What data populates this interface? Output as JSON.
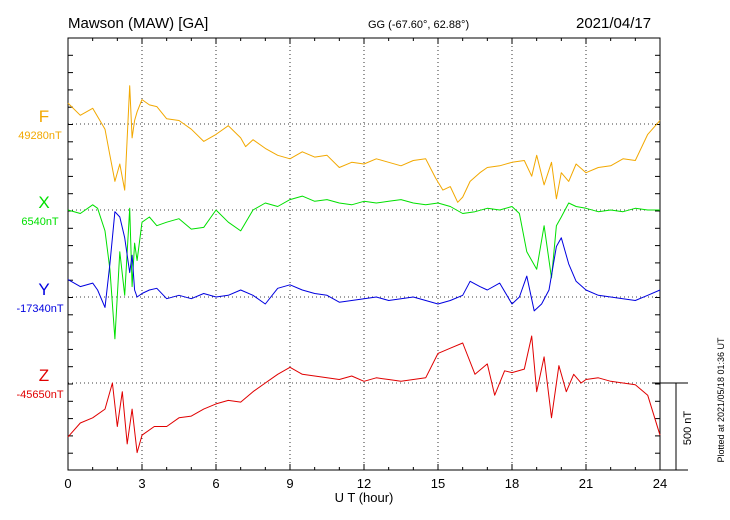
{
  "header": {
    "station": "Mawson (MAW)  [GA]",
    "coords": "GG (-67.60°,  62.88°)",
    "date": "2021/04/17"
  },
  "footer": {
    "plotted_note": "Plotted at 2021/05/18 01:36 UT",
    "scale_label": "500 nT"
  },
  "chart_data": {
    "type": "line",
    "xlabel": "U T (hour)",
    "xlim": [
      0,
      24
    ],
    "xticks": [
      "0",
      "3",
      "6",
      "9",
      "12",
      "15",
      "18",
      "21",
      "24"
    ],
    "scale_nT": 500,
    "series": [
      {
        "name": "F",
        "baseline_label": "49280nT",
        "baseline_nT": 49280,
        "color": "#f2a800",
        "x": [
          0,
          0.5,
          1.0,
          1.5,
          1.7,
          1.9,
          2.1,
          2.3,
          2.5,
          2.6,
          2.7,
          2.8,
          3.0,
          3.3,
          3.6,
          4.0,
          4.5,
          5.0,
          5.5,
          6.0,
          6.5,
          7.0,
          7.2,
          7.5,
          8.0,
          8.5,
          9.0,
          9.5,
          10.0,
          10.5,
          11.0,
          11.5,
          12.0,
          12.5,
          13.0,
          13.5,
          14.0,
          14.5,
          14.9,
          15.2,
          15.5,
          15.8,
          16.0,
          16.3,
          16.7,
          17.0,
          17.5,
          18.0,
          18.5,
          18.8,
          19.0,
          19.3,
          19.6,
          19.8,
          20.0,
          20.3,
          20.6,
          21.0,
          21.5,
          22.0,
          22.5,
          23.0,
          23.5,
          24.0
        ],
        "values": [
          49400,
          49330,
          49370,
          49250,
          49100,
          48950,
          49050,
          48900,
          49500,
          49200,
          49300,
          49350,
          49420,
          49390,
          49380,
          49310,
          49300,
          49250,
          49180,
          49220,
          49270,
          49200,
          49150,
          49190,
          49140,
          49100,
          49080,
          49120,
          49090,
          49100,
          49030,
          49060,
          49050,
          49080,
          49060,
          49040,
          49070,
          49080,
          48970,
          48900,
          48920,
          48830,
          48860,
          48950,
          49000,
          49030,
          49040,
          49060,
          49070,
          48980,
          49100,
          48930,
          49060,
          48850,
          49000,
          48950,
          49050,
          49000,
          49030,
          49040,
          49080,
          49070,
          49220,
          49300
        ]
      },
      {
        "name": "X",
        "baseline_label": "6540nT",
        "baseline_nT": 6540,
        "color": "#00e000",
        "x": [
          0,
          0.5,
          1.0,
          1.2,
          1.5,
          1.7,
          1.9,
          2.1,
          2.3,
          2.5,
          2.6,
          2.7,
          2.8,
          3.0,
          3.3,
          3.6,
          4.0,
          4.5,
          5.0,
          5.5,
          6.0,
          6.5,
          7.0,
          7.5,
          8.0,
          8.5,
          9.0,
          9.5,
          10.0,
          10.5,
          11.0,
          11.5,
          12.0,
          12.5,
          13.0,
          13.5,
          14.0,
          14.5,
          15.0,
          15.5,
          16.0,
          16.5,
          17.0,
          17.5,
          18.0,
          18.3,
          18.6,
          19.0,
          19.3,
          19.6,
          19.8,
          20.0,
          20.3,
          20.6,
          21.0,
          21.5,
          22.0,
          22.5,
          23.0,
          23.5,
          24.0
        ],
        "values": [
          6540,
          6520,
          6570,
          6550,
          6420,
          6200,
          5800,
          6300,
          6050,
          6550,
          6100,
          6350,
          6250,
          6470,
          6500,
          6450,
          6470,
          6490,
          6430,
          6440,
          6540,
          6470,
          6420,
          6540,
          6580,
          6560,
          6600,
          6620,
          6590,
          6600,
          6580,
          6570,
          6590,
          6580,
          6590,
          6600,
          6580,
          6570,
          6580,
          6560,
          6520,
          6530,
          6550,
          6540,
          6560,
          6520,
          6300,
          6200,
          6450,
          6150,
          6450,
          6500,
          6580,
          6560,
          6550,
          6530,
          6540,
          6530,
          6550,
          6540,
          6540
        ]
      },
      {
        "name": "Y",
        "baseline_label": "-17340nT",
        "baseline_nT": -17340,
        "color": "#0000e0",
        "x": [
          0,
          0.5,
          1.0,
          1.2,
          1.5,
          1.7,
          1.9,
          2.1,
          2.3,
          2.5,
          2.6,
          2.7,
          2.8,
          3.0,
          3.3,
          3.6,
          4.0,
          4.5,
          5.0,
          5.5,
          6.0,
          6.5,
          7.0,
          7.5,
          8.0,
          8.5,
          9.0,
          9.5,
          10.0,
          10.5,
          11.0,
          11.5,
          12.0,
          12.5,
          13.0,
          13.5,
          14.0,
          14.5,
          15.0,
          15.5,
          16.0,
          16.3,
          16.7,
          17.0,
          17.5,
          18.0,
          18.3,
          18.6,
          18.9,
          19.2,
          19.5,
          19.8,
          20.0,
          20.3,
          20.6,
          21.0,
          21.5,
          22.0,
          22.5,
          23.0,
          23.5,
          24.0
        ],
        "values": [
          -17240,
          -17280,
          -17260,
          -17300,
          -17400,
          -17150,
          -16850,
          -16880,
          -17000,
          -17200,
          -17100,
          -17300,
          -17340,
          -17320,
          -17300,
          -17290,
          -17350,
          -17330,
          -17350,
          -17320,
          -17340,
          -17330,
          -17300,
          -17330,
          -17380,
          -17290,
          -17270,
          -17300,
          -17320,
          -17330,
          -17370,
          -17360,
          -17350,
          -17340,
          -17360,
          -17350,
          -17340,
          -17360,
          -17380,
          -17360,
          -17330,
          -17250,
          -17280,
          -17300,
          -17260,
          -17380,
          -17340,
          -17220,
          -17420,
          -17380,
          -17300,
          -17050,
          -17000,
          -17150,
          -17250,
          -17300,
          -17330,
          -17340,
          -17350,
          -17360,
          -17330,
          -17300
        ]
      },
      {
        "name": "Z",
        "baseline_label": "-45650nT",
        "baseline_nT": -45650,
        "color": "#e00000",
        "x": [
          0,
          0.5,
          1.0,
          1.5,
          1.8,
          2.0,
          2.2,
          2.4,
          2.6,
          2.8,
          3.0,
          3.5,
          4.0,
          4.5,
          5.0,
          5.5,
          6.0,
          6.5,
          7.0,
          7.5,
          8.0,
          8.5,
          9.0,
          9.5,
          10.0,
          10.5,
          11.0,
          11.5,
          12.0,
          12.5,
          13.0,
          13.5,
          14.0,
          14.5,
          15.0,
          15.5,
          16.0,
          16.5,
          17.0,
          17.3,
          17.7,
          18.0,
          18.5,
          18.8,
          19.0,
          19.3,
          19.6,
          19.9,
          20.2,
          20.5,
          20.8,
          21.0,
          21.5,
          22.0,
          22.5,
          23.0,
          23.5,
          24.0
        ],
        "values": [
          -45960,
          -45880,
          -45850,
          -45800,
          -45650,
          -45900,
          -45700,
          -46000,
          -45800,
          -46050,
          -45950,
          -45900,
          -45900,
          -45850,
          -45840,
          -45800,
          -45770,
          -45750,
          -45760,
          -45700,
          -45650,
          -45600,
          -45560,
          -45600,
          -45610,
          -45620,
          -45630,
          -45610,
          -45640,
          -45620,
          -45630,
          -45640,
          -45630,
          -45620,
          -45480,
          -45450,
          -45420,
          -45600,
          -45540,
          -45720,
          -45580,
          -45590,
          -45570,
          -45380,
          -45700,
          -45500,
          -45850,
          -45550,
          -45700,
          -45600,
          -45650,
          -45630,
          -45620,
          -45640,
          -45650,
          -45660,
          -45720,
          -45950
        ]
      }
    ]
  }
}
